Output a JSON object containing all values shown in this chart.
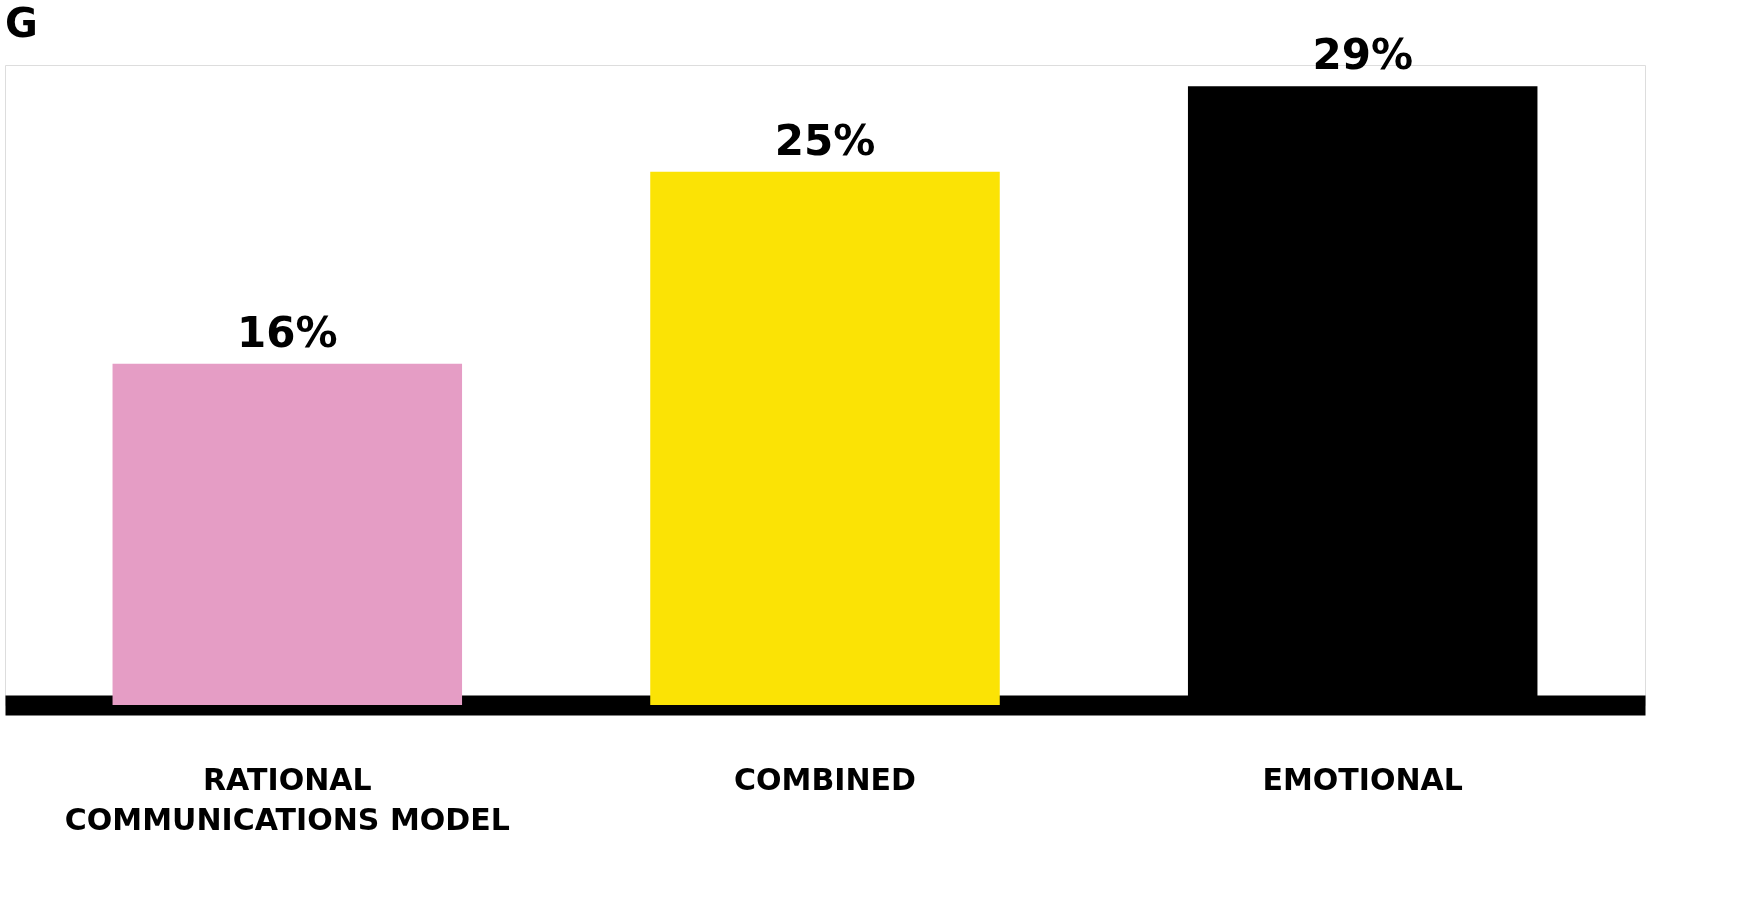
{
  "chart_data": {
    "type": "bar",
    "title": "G",
    "categories": [
      "RATIONAL\nCOMMUNICATIONS MODEL",
      "COMBINED",
      "EMOTIONAL"
    ],
    "values": [
      16,
      25,
      29
    ],
    "colors": [
      "#e59dc5",
      "#fbe305",
      "#000000"
    ],
    "value_labels": [
      "16%",
      "25%",
      "29%"
    ],
    "grid": false,
    "legend": false
  }
}
